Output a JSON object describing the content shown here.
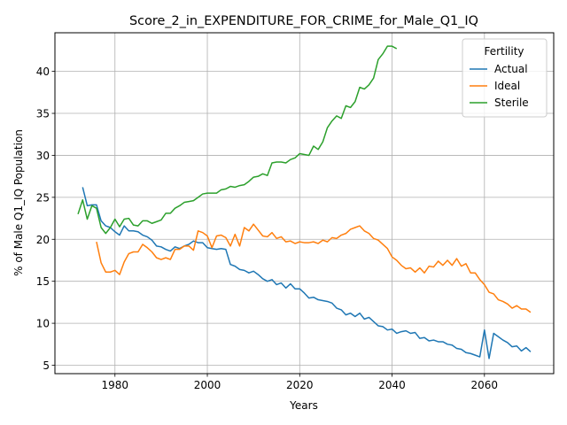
{
  "chart_data": {
    "type": "line",
    "title": "Score_2_in_EXPENDITURE_FOR_CRIME_for_Male_Q1_IQ",
    "xlabel": "Years",
    "ylabel": "% of Male Q1_IQ Population",
    "xlim": [
      1967,
      2075
    ],
    "ylim": [
      4,
      44.6
    ],
    "xticks": [
      1980,
      2000,
      2020,
      2040,
      2060
    ],
    "yticks": [
      5,
      10,
      15,
      20,
      25,
      30,
      35,
      40
    ],
    "grid": true,
    "legend": {
      "title": "Fertility",
      "position": "top-right"
    },
    "series": [
      {
        "name": "Actual",
        "color": "#1f77b4",
        "x": [
          1973,
          1974,
          1975,
          1976,
          1977,
          1978,
          1979,
          1980,
          1981,
          1982,
          1983,
          1984,
          1985,
          1986,
          1987,
          1988,
          1989,
          1990,
          1991,
          1992,
          1993,
          1994,
          1995,
          1996,
          1997,
          1998,
          1999,
          2000,
          2001,
          2002,
          2003,
          2004,
          2005,
          2006,
          2007,
          2008,
          2009,
          2010,
          2011,
          2012,
          2013,
          2014,
          2015,
          2016,
          2017,
          2018,
          2019,
          2020,
          2021,
          2022,
          2023,
          2024,
          2025,
          2026,
          2027,
          2028,
          2029,
          2030,
          2031,
          2032,
          2033,
          2034,
          2035,
          2036,
          2037,
          2038,
          2039,
          2040,
          2041,
          2042,
          2043,
          2044,
          2045,
          2046,
          2047,
          2048,
          2049,
          2050,
          2051,
          2052,
          2053,
          2054,
          2055,
          2056,
          2057,
          2058,
          2059,
          2060,
          2061,
          2062,
          2063,
          2064,
          2065,
          2066,
          2067,
          2068,
          2069,
          2070
        ],
        "values": [
          26.2,
          24.0,
          24.1,
          24.1,
          22.2,
          21.6,
          21.4,
          20.9,
          20.5,
          21.6,
          21.0,
          21.0,
          20.9,
          20.5,
          20.3,
          19.9,
          19.2,
          19.1,
          18.8,
          18.6,
          19.1,
          18.9,
          19.2,
          19.4,
          19.8,
          19.6,
          19.6,
          19.0,
          18.9,
          18.8,
          18.9,
          18.8,
          17.0,
          16.8,
          16.4,
          16.3,
          16.0,
          16.2,
          15.8,
          15.3,
          15.0,
          15.2,
          14.6,
          14.8,
          14.2,
          14.7,
          14.1,
          14.1,
          13.6,
          13.0,
          13.1,
          12.8,
          12.7,
          12.6,
          12.4,
          11.8,
          11.6,
          11.0,
          11.2,
          10.8,
          11.2,
          10.5,
          10.7,
          10.2,
          9.7,
          9.6,
          9.2,
          9.3,
          8.8,
          9.0,
          9.1,
          8.8,
          8.9,
          8.2,
          8.3,
          7.9,
          8.0,
          7.8,
          7.8,
          7.5,
          7.4,
          7.0,
          6.9,
          6.5,
          6.4,
          6.2,
          6.0,
          9.2,
          5.8,
          8.8,
          8.4,
          8.0,
          7.7,
          7.2,
          7.3,
          6.7,
          7.1,
          6.6
        ]
      },
      {
        "name": "Ideal",
        "color": "#ff7f0e",
        "x": [
          1976,
          1977,
          1978,
          1979,
          1980,
          1981,
          1982,
          1983,
          1984,
          1985,
          1986,
          1987,
          1988,
          1989,
          1990,
          1991,
          1992,
          1993,
          1994,
          1995,
          1996,
          1997,
          1998,
          1999,
          2000,
          2001,
          2002,
          2003,
          2004,
          2005,
          2006,
          2007,
          2008,
          2009,
          2010,
          2011,
          2012,
          2013,
          2014,
          2015,
          2016,
          2017,
          2018,
          2019,
          2020,
          2021,
          2022,
          2023,
          2024,
          2025,
          2026,
          2027,
          2028,
          2029,
          2030,
          2031,
          2032,
          2033,
          2034,
          2035,
          2036,
          2037,
          2038,
          2039,
          2040,
          2041,
          2042,
          2043,
          2044,
          2045,
          2046,
          2047,
          2048,
          2049,
          2050,
          2051,
          2052,
          2053,
          2054,
          2055,
          2056,
          2057,
          2058,
          2059,
          2060,
          2061,
          2062,
          2063,
          2064,
          2065,
          2066,
          2067,
          2068,
          2069,
          2070
        ],
        "values": [
          19.7,
          17.2,
          16.1,
          16.1,
          16.3,
          15.8,
          17.3,
          18.3,
          18.5,
          18.5,
          19.4,
          19.0,
          18.5,
          17.8,
          17.6,
          17.8,
          17.6,
          18.8,
          18.8,
          19.2,
          19.2,
          18.7,
          21.0,
          20.8,
          20.4,
          19.0,
          20.4,
          20.5,
          20.2,
          19.2,
          20.6,
          19.2,
          21.4,
          21.0,
          21.8,
          21.1,
          20.4,
          20.3,
          20.8,
          20.1,
          20.3,
          19.7,
          19.8,
          19.5,
          19.7,
          19.6,
          19.6,
          19.7,
          19.5,
          19.9,
          19.7,
          20.2,
          20.1,
          20.5,
          20.7,
          21.2,
          21.4,
          21.6,
          21.0,
          20.7,
          20.1,
          19.9,
          19.4,
          18.9,
          17.9,
          17.5,
          16.9,
          16.5,
          16.6,
          16.1,
          16.6,
          16.0,
          16.8,
          16.7,
          17.4,
          16.9,
          17.5,
          16.9,
          17.7,
          16.8,
          17.1,
          16.0,
          16.0,
          15.2,
          14.6,
          13.7,
          13.5,
          12.8,
          12.6,
          12.3,
          11.8,
          12.1,
          11.7,
          11.7,
          11.3
        ]
      },
      {
        "name": "Sterile",
        "color": "#2ca02c",
        "x": [
          1972,
          1973,
          1974,
          1975,
          1976,
          1977,
          1978,
          1979,
          1980,
          1981,
          1982,
          1983,
          1984,
          1985,
          1986,
          1987,
          1988,
          1989,
          1990,
          1991,
          1992,
          1993,
          1994,
          1995,
          1996,
          1997,
          1998,
          1999,
          2000,
          2001,
          2002,
          2003,
          2004,
          2005,
          2006,
          2007,
          2008,
          2009,
          2010,
          2011,
          2012,
          2013,
          2014,
          2015,
          2016,
          2017,
          2018,
          2019,
          2020,
          2021,
          2022,
          2023,
          2024,
          2025,
          2026,
          2027,
          2028,
          2029,
          2030,
          2031,
          2032,
          2033,
          2034,
          2035,
          2036,
          2037,
          2038,
          2039,
          2040,
          2041
        ],
        "values": [
          23.0,
          24.7,
          22.4,
          24.0,
          23.7,
          21.4,
          20.7,
          21.4,
          22.4,
          21.5,
          22.4,
          22.5,
          21.7,
          21.6,
          22.2,
          22.2,
          21.9,
          22.1,
          22.3,
          23.1,
          23.1,
          23.7,
          24.0,
          24.4,
          24.5,
          24.6,
          25.0,
          25.4,
          25.5,
          25.5,
          25.5,
          25.9,
          26.0,
          26.3,
          26.2,
          26.4,
          26.5,
          26.9,
          27.4,
          27.5,
          27.8,
          27.6,
          29.1,
          29.2,
          29.2,
          29.1,
          29.5,
          29.7,
          30.2,
          30.1,
          30.0,
          31.1,
          30.7,
          31.6,
          33.3,
          34.1,
          34.7,
          34.4,
          35.9,
          35.7,
          36.4,
          38.1,
          37.9,
          38.4,
          39.2,
          41.4,
          42.1,
          43.0,
          43.0,
          42.7
        ]
      }
    ]
  }
}
